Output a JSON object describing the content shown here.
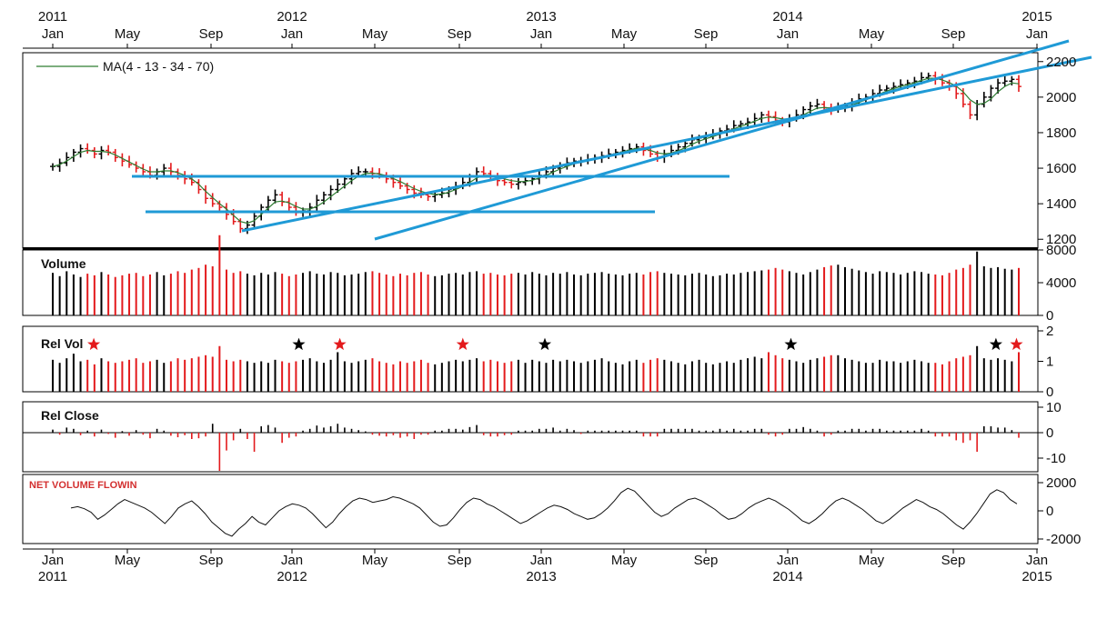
{
  "chart_data": {
    "type": "ohlc",
    "x_axis": {
      "year_labels": [
        "2011",
        "2012",
        "2013",
        "2014",
        "2015"
      ],
      "month_labels": [
        "Jan",
        "May",
        "Sep",
        "Jan",
        "May",
        "Sep",
        "Jan",
        "May",
        "Sep",
        "Jan",
        "May",
        "Sep",
        "Jan"
      ],
      "range": [
        "2011-01",
        "2015-01"
      ]
    },
    "colors": {
      "up": "#000000",
      "down": "#e31a1c",
      "ma": "#2e7d32",
      "trendline": "#1f9ad6",
      "flow_label": "#d32f2f"
    },
    "price_panel": {
      "legend": "MA(4 - 13 - 34 - 70)",
      "ylim": [
        1150,
        2250
      ],
      "yticks": [
        "2200",
        "2000",
        "1800",
        "1600",
        "1400",
        "1200"
      ],
      "series": {
        "name": "MA(4 - 13 - 34 - 70)",
        "close": [
          1610,
          1630,
          1660,
          1690,
          1710,
          1700,
          1680,
          1700,
          1690,
          1660,
          1640,
          1620,
          1600,
          1580,
          1560,
          1580,
          1600,
          1580,
          1560,
          1540,
          1520,
          1480,
          1430,
          1400,
          1380,
          1340,
          1300,
          1260,
          1280,
          1330,
          1380,
          1420,
          1450,
          1410,
          1380,
          1350,
          1360,
          1380,
          1420,
          1450,
          1480,
          1510,
          1540,
          1570,
          1580,
          1580,
          1570,
          1560,
          1540,
          1520,
          1500,
          1480,
          1460,
          1450,
          1440,
          1450,
          1460,
          1480,
          1500,
          1520,
          1550,
          1580,
          1570,
          1550,
          1530,
          1520,
          1510,
          1520,
          1530,
          1540,
          1560,
          1580,
          1600,
          1610,
          1630,
          1640,
          1640,
          1650,
          1660,
          1670,
          1680,
          1690,
          1700,
          1710,
          1720,
          1700,
          1680,
          1660,
          1680,
          1700,
          1720,
          1740,
          1760,
          1770,
          1780,
          1790,
          1810,
          1820,
          1840,
          1850,
          1860,
          1880,
          1900,
          1890,
          1870,
          1860,
          1880,
          1900,
          1930,
          1950,
          1960,
          1940,
          1930,
          1940,
          1950,
          1970,
          1990,
          2000,
          2020,
          2040,
          2050,
          2060,
          2070,
          2080,
          2090,
          2110,
          2120,
          2100,
          2080,
          2060,
          2020,
          1960,
          1900,
          1960,
          2000,
          2050,
          2080,
          2090,
          2100,
          2060
        ],
        "ma": [
          1610,
          1620,
          1640,
          1665,
          1690,
          1700,
          1695,
          1695,
          1690,
          1675,
          1655,
          1635,
          1615,
          1595,
          1580,
          1580,
          1585,
          1585,
          1575,
          1560,
          1540,
          1510,
          1470,
          1435,
          1400,
          1370,
          1335,
          1300,
          1290,
          1305,
          1340,
          1375,
          1410,
          1415,
          1405,
          1385,
          1370,
          1370,
          1385,
          1410,
          1440,
          1470,
          1500,
          1530,
          1555,
          1570,
          1572,
          1568,
          1558,
          1542,
          1525,
          1505,
          1485,
          1470,
          1458,
          1452,
          1455,
          1465,
          1480,
          1498,
          1520,
          1545,
          1560,
          1560,
          1550,
          1540,
          1530,
          1525,
          1525,
          1532,
          1545,
          1560,
          1578,
          1595,
          1610,
          1625,
          1635,
          1643,
          1652,
          1662,
          1672,
          1682,
          1692,
          1702,
          1712,
          1710,
          1700,
          1686,
          1680,
          1685,
          1698,
          1715,
          1735,
          1752,
          1766,
          1778,
          1792,
          1806,
          1822,
          1836,
          1849,
          1864,
          1880,
          1888,
          1884,
          1877,
          1876,
          1884,
          1900,
          1920,
          1938,
          1942,
          1938,
          1938,
          1944,
          1955,
          1970,
          1985,
          2000,
          2018,
          2034,
          2048,
          2060,
          2070,
          2080,
          2094,
          2106,
          2106,
          2096,
          2082,
          2062,
          2030,
          1985,
          1960,
          1965,
          1990,
          2030,
          2060,
          2080,
          2075
        ]
      },
      "legend_position": "top-left"
    },
    "volume_panel": {
      "label": "Volume",
      "ylim": [
        0,
        8000
      ],
      "yticks": [
        "8000",
        "4000",
        "0"
      ],
      "values": [
        5200,
        4800,
        5400,
        5000,
        4700,
        5100,
        4900,
        5300,
        5000,
        4700,
        4900,
        5100,
        5200,
        4800,
        5000,
        5300,
        4900,
        5100,
        5400,
        5200,
        5600,
        5800,
        6200,
        6000,
        9800,
        5600,
        5200,
        5400,
        5100,
        4900,
        5200,
        5000,
        5300,
        5100,
        4800,
        5000,
        5200,
        5400,
        5100,
        5000,
        5300,
        5200,
        4900,
        5000,
        5100,
        5300,
        5400,
        5200,
        5000,
        4800,
        5100,
        4900,
        5200,
        5300,
        5000,
        4800,
        4900,
        5100,
        5200,
        5000,
        5300,
        5400,
        5100,
        5200,
        5000,
        4900,
        5100,
        5200,
        5000,
        5300,
        5100,
        4900,
        5200,
        5100,
        5300,
        5000,
        4900,
        5100,
        5200,
        5300,
        5100,
        5000,
        4900,
        5100,
        5200,
        5000,
        5300,
        5400,
        5200,
        5100,
        5000,
        4900,
        5100,
        5200,
        5000,
        4800,
        4900,
        5100,
        5000,
        5200,
        5300,
        5400,
        5500,
        5600,
        5800,
        5600,
        5400,
        5200,
        5000,
        5300,
        5600,
        5900,
        6100,
        6200,
        5900,
        5700,
        5500,
        5300,
        5100,
        5400,
        5300,
        5200,
        5000,
        5200,
        5400,
        5300,
        5100,
        5000,
        4900,
        5200,
        5600,
        5800,
        6200,
        7800,
        6000,
        5800,
        5900,
        5700,
        5600,
        5800
      ]
    },
    "relvol_panel": {
      "label": "Rel Vol",
      "ylim": [
        0,
        2
      ],
      "yticks": [
        "2",
        "1",
        "0"
      ],
      "values": [
        1.05,
        0.95,
        1.1,
        1.25,
        1.0,
        1.05,
        0.9,
        1.1,
        1.0,
        0.95,
        1.0,
        1.05,
        1.1,
        0.95,
        1.0,
        1.05,
        0.95,
        1.0,
        1.1,
        1.05,
        1.1,
        1.15,
        1.2,
        1.15,
        1.5,
        1.05,
        1.0,
        1.05,
        1.0,
        0.95,
        1.0,
        0.95,
        1.05,
        1.0,
        0.95,
        1.0,
        1.05,
        1.1,
        1.0,
        0.95,
        1.05,
        1.3,
        1.0,
        0.95,
        1.0,
        1.05,
        1.1,
        1.0,
        0.95,
        0.9,
        1.0,
        0.95,
        1.0,
        1.05,
        0.95,
        0.9,
        0.95,
        1.0,
        1.05,
        1.0,
        1.05,
        1.1,
        1.0,
        1.05,
        1.0,
        0.95,
        1.0,
        1.05,
        0.95,
        1.05,
        1.0,
        0.95,
        1.05,
        1.0,
        1.05,
        1.0,
        0.95,
        1.0,
        1.05,
        1.1,
        1.0,
        0.95,
        0.9,
        1.0,
        1.05,
        0.95,
        1.05,
        1.1,
        1.05,
        1.0,
        0.95,
        0.9,
        1.0,
        1.05,
        0.95,
        0.9,
        0.95,
        1.0,
        0.95,
        1.05,
        1.1,
        1.15,
        1.1,
        1.3,
        1.2,
        1.1,
        1.05,
        1.0,
        0.95,
        1.05,
        1.1,
        1.15,
        1.2,
        1.2,
        1.1,
        1.05,
        1.0,
        0.95,
        0.95,
        1.05,
        1.0,
        1.0,
        0.95,
        1.0,
        1.05,
        1.0,
        0.95,
        0.95,
        0.9,
        1.0,
        1.1,
        1.15,
        1.2,
        1.5,
        1.1,
        1.05,
        1.1,
        1.05,
        1.0,
        1.3
      ],
      "star_markers": [
        {
          "date": "2011-03",
          "color": "#e31a1c"
        },
        {
          "date": "2012-01",
          "color": "#000000"
        },
        {
          "date": "2012-03",
          "color": "#e31a1c"
        },
        {
          "date": "2012-09",
          "color": "#e31a1c"
        },
        {
          "date": "2013-01",
          "color": "#000000"
        },
        {
          "date": "2014-01",
          "color": "#000000"
        },
        {
          "date": "2014-11",
          "color": "#000000"
        },
        {
          "date": "2014-12",
          "color": "#e31a1c"
        }
      ]
    },
    "relclose_panel": {
      "label": "Rel Close",
      "ylim": [
        -15,
        12
      ],
      "yticks": [
        "10",
        "0",
        "-10"
      ],
      "values": [
        1.2,
        -0.8,
        2.0,
        1.5,
        -1.0,
        0.8,
        -1.5,
        1.2,
        -0.5,
        -2.0,
        0.6,
        -1.2,
        1.0,
        -0.8,
        -2.2,
        1.5,
        0.8,
        -1.2,
        -1.8,
        -1.0,
        -2.5,
        -2.2,
        -1.5,
        3.5,
        -15.0,
        -7.0,
        -3.0,
        1.5,
        -2.5,
        -7.5,
        2.5,
        3.0,
        2.0,
        -4.0,
        -2.0,
        -1.5,
        0.8,
        1.5,
        2.8,
        2.0,
        2.5,
        3.5,
        2.0,
        1.5,
        1.0,
        0.5,
        -0.8,
        -1.2,
        -1.5,
        -1.0,
        -2.0,
        -1.5,
        -2.5,
        -0.8,
        -0.8,
        0.8,
        0.8,
        1.5,
        1.5,
        1.2,
        2.2,
        3.0,
        -1.0,
        -1.5,
        -1.5,
        -1.0,
        -0.8,
        0.8,
        0.8,
        0.8,
        1.5,
        1.5,
        2.0,
        0.8,
        1.5,
        1.0,
        -0.5,
        0.8,
        0.8,
        0.8,
        0.8,
        0.8,
        0.8,
        0.8,
        0.8,
        -1.5,
        -1.5,
        -1.5,
        1.5,
        1.5,
        1.5,
        1.5,
        1.5,
        0.8,
        0.8,
        0.8,
        1.5,
        0.8,
        1.5,
        0.8,
        0.8,
        1.5,
        1.5,
        -0.8,
        -1.5,
        -0.8,
        1.5,
        1.5,
        2.2,
        1.5,
        0.8,
        -1.5,
        -0.8,
        0.8,
        0.8,
        1.5,
        1.5,
        0.8,
        1.5,
        1.5,
        0.8,
        0.8,
        0.8,
        0.8,
        0.8,
        1.5,
        0.8,
        -1.5,
        -1.5,
        -1.5,
        -3.0,
        -4.0,
        -3.0,
        -7.5,
        2.5,
        2.5,
        2.0,
        2.0,
        1.0,
        -2.0
      ]
    },
    "flow_panel": {
      "label": "NET VOLUME FLOWIN",
      "ylim": [
        -2100,
        2400
      ],
      "yticks": [
        "2000",
        "0",
        "-2000"
      ],
      "values": [
        200,
        300,
        150,
        -100,
        -600,
        -300,
        100,
        500,
        800,
        600,
        400,
        200,
        -100,
        -500,
        -900,
        -400,
        200,
        500,
        700,
        300,
        -200,
        -800,
        -1200,
        -1600,
        -1800,
        -1300,
        -900,
        -400,
        -800,
        -1000,
        -500,
        0,
        300,
        500,
        400,
        200,
        -200,
        -700,
        -1200,
        -800,
        -200,
        300,
        700,
        900,
        800,
        600,
        700,
        800,
        1000,
        900,
        700,
        500,
        200,
        -300,
        -800,
        -1100,
        -1000,
        -500,
        100,
        600,
        900,
        800,
        500,
        300,
        0,
        -300,
        -600,
        -900,
        -700,
        -400,
        -100,
        200,
        400,
        300,
        100,
        -200,
        -400,
        -600,
        -500,
        -200,
        200,
        700,
        1300,
        1600,
        1400,
        900,
        400,
        -100,
        -400,
        -200,
        200,
        500,
        800,
        900,
        700,
        400,
        100,
        -300,
        -600,
        -500,
        -200,
        200,
        500,
        700,
        900,
        700,
        400,
        100,
        -300,
        -700,
        -900,
        -600,
        -200,
        300,
        700,
        900,
        700,
        400,
        100,
        -300,
        -700,
        -900,
        -600,
        -200,
        200,
        500,
        800,
        600,
        300,
        100,
        -200,
        -600,
        -1000,
        -1300,
        -800,
        -200,
        500,
        1200,
        1500,
        1300,
        800,
        500
      ]
    }
  }
}
